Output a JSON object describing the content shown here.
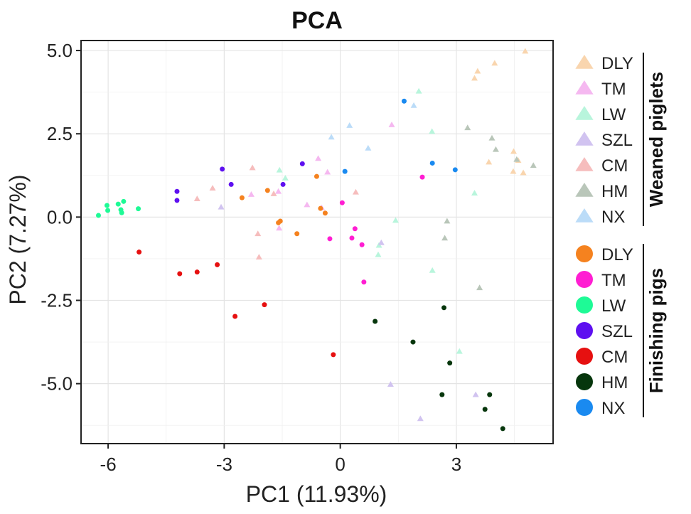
{
  "chart_data": {
    "type": "scatter",
    "title": "PCA",
    "xlabel": "PC1 (11.93%)",
    "ylabel": "PC2 (7.27%)",
    "xlim": [
      -6.7,
      5.5
    ],
    "ylim": [
      -6.8,
      5.3
    ],
    "xticks": [
      -6,
      -3,
      0,
      3
    ],
    "xtick_labels": [
      "-6",
      "-3",
      "0",
      "3"
    ],
    "yticks": [
      5.0,
      2.5,
      0.0,
      -2.5,
      -5.0
    ],
    "ytick_labels": [
      "5.0",
      "2.5",
      "0.0",
      "-2.5",
      "-5.0"
    ],
    "grid": true,
    "legend_position": "right",
    "legend_groups": [
      {
        "title": "Weaned piglets",
        "marker": "triangle",
        "series": [
          {
            "name": "DLY",
            "color": "#f9d5ae",
            "points": [
              [
                4.78,
                4.98
              ],
              [
                3.99,
                4.62
              ],
              [
                3.55,
                4.38
              ],
              [
                3.47,
                4.17
              ],
              [
                4.48,
                1.97
              ],
              [
                4.6,
                1.7
              ],
              [
                3.84,
                1.65
              ],
              [
                4.47,
                1.37
              ],
              [
                4.73,
                1.33
              ]
            ]
          },
          {
            "name": "TM",
            "color": "#f5b8f0",
            "points": [
              [
                1.33,
                2.77
              ],
              [
                -0.57,
                1.76
              ],
              [
                -0.33,
                1.35
              ],
              [
                -2.3,
                0.68
              ],
              [
                -1.6,
                0.77
              ],
              [
                -1.58,
                -0.33
              ],
              [
                -0.86,
                0.37
              ],
              [
                -0.48,
                0.28
              ]
            ]
          },
          {
            "name": "LW",
            "color": "#b8f5dc",
            "points": [
              [
                2.03,
                3.78
              ],
              [
                2.37,
                2.57
              ],
              [
                1.43,
                -0.1
              ],
              [
                1.0,
                -0.85
              ],
              [
                0.98,
                -1.13
              ],
              [
                2.38,
                -1.6
              ],
              [
                3.47,
                0.72
              ],
              [
                3.08,
                -4.03
              ],
              [
                -1.57,
                1.41
              ],
              [
                -1.42,
                1.17
              ]
            ]
          },
          {
            "name": "SZL",
            "color": "#d1c3f0",
            "points": [
              [
                -3.08,
                0.3
              ],
              [
                1.06,
                -0.77
              ],
              [
                1.3,
                -5.02
              ],
              [
                2.07,
                -6.05
              ],
              [
                3.5,
                -5.33
              ]
            ]
          },
          {
            "name": "CM",
            "color": "#f6bdbd",
            "points": [
              [
                -2.27,
                1.48
              ],
              [
                -3.3,
                0.87
              ],
              [
                -3.7,
                0.55
              ],
              [
                -2.13,
                -0.5
              ],
              [
                -2.1,
                -1.2
              ],
              [
                -1.72,
                0.7
              ],
              [
                0.4,
                0.75
              ]
            ]
          },
          {
            "name": "HM",
            "color": "#b9c6b9",
            "points": [
              [
                3.29,
                2.68
              ],
              [
                3.92,
                2.37
              ],
              [
                4.02,
                2.03
              ],
              [
                4.56,
                1.73
              ],
              [
                4.99,
                1.55
              ],
              [
                2.76,
                -0.12
              ],
              [
                2.7,
                -0.63
              ],
              [
                3.6,
                -2.12
              ]
            ]
          },
          {
            "name": "NX",
            "color": "#bbdcf8",
            "points": [
              [
                1.9,
                3.35
              ],
              [
                0.72,
                2.07
              ],
              [
                0.24,
                2.75
              ],
              [
                -0.23,
                2.4
              ]
            ]
          }
        ]
      },
      {
        "title": "Finishing pigs",
        "marker": "circle",
        "series": [
          {
            "name": "DLY",
            "color": "#f5821f",
            "points": [
              [
                -2.54,
                0.58
              ],
              [
                -1.88,
                0.8
              ],
              [
                -0.61,
                1.22
              ],
              [
                -0.51,
                0.26
              ],
              [
                -0.39,
                0.12
              ],
              [
                -1.55,
                -0.12
              ],
              [
                -1.6,
                -0.17
              ],
              [
                -1.12,
                -0.5
              ]
            ]
          },
          {
            "name": "TM",
            "color": "#ff1ed2",
            "points": [
              [
                2.12,
                1.2
              ],
              [
                0.05,
                0.43
              ],
              [
                0.3,
                -0.63
              ],
              [
                0.56,
                -0.83
              ],
              [
                -0.27,
                -0.65
              ],
              [
                0.38,
                -0.35
              ],
              [
                0.61,
                -1.95
              ]
            ]
          },
          {
            "name": "LW",
            "color": "#1efa96",
            "points": [
              [
                -6.25,
                0.05
              ],
              [
                -6.03,
                0.35
              ],
              [
                -6.01,
                0.2
              ],
              [
                -5.74,
                0.39
              ],
              [
                -5.6,
                0.47
              ],
              [
                -5.67,
                0.22
              ],
              [
                -5.65,
                0.13
              ],
              [
                -5.22,
                0.25
              ]
            ]
          },
          {
            "name": "SZL",
            "color": "#5e10f0",
            "points": [
              [
                -4.22,
                0.77
              ],
              [
                -4.22,
                0.5
              ],
              [
                -3.05,
                1.44
              ],
              [
                -2.82,
                0.98
              ],
              [
                -1.48,
                0.98
              ],
              [
                -0.98,
                1.6
              ]
            ]
          },
          {
            "name": "CM",
            "color": "#e61010",
            "points": [
              [
                -5.2,
                -1.05
              ],
              [
                -4.15,
                -1.7
              ],
              [
                -3.7,
                -1.65
              ],
              [
                -3.18,
                -1.43
              ],
              [
                -2.72,
                -2.98
              ],
              [
                -1.96,
                -2.63
              ],
              [
                -0.18,
                -4.13
              ]
            ]
          },
          {
            "name": "HM",
            "color": "#06360c",
            "points": [
              [
                0.9,
                -3.13
              ],
              [
                1.88,
                -3.75
              ],
              [
                2.68,
                -2.72
              ],
              [
                2.83,
                -4.38
              ],
              [
                2.63,
                -5.33
              ],
              [
                3.86,
                -5.33
              ],
              [
                3.74,
                -5.77
              ],
              [
                4.2,
                -6.35
              ]
            ]
          },
          {
            "name": "NX",
            "color": "#1a8af0",
            "points": [
              [
                1.65,
                3.48
              ],
              [
                2.38,
                1.62
              ],
              [
                2.97,
                1.42
              ],
              [
                0.12,
                1.37
              ]
            ]
          }
        ]
      }
    ]
  }
}
